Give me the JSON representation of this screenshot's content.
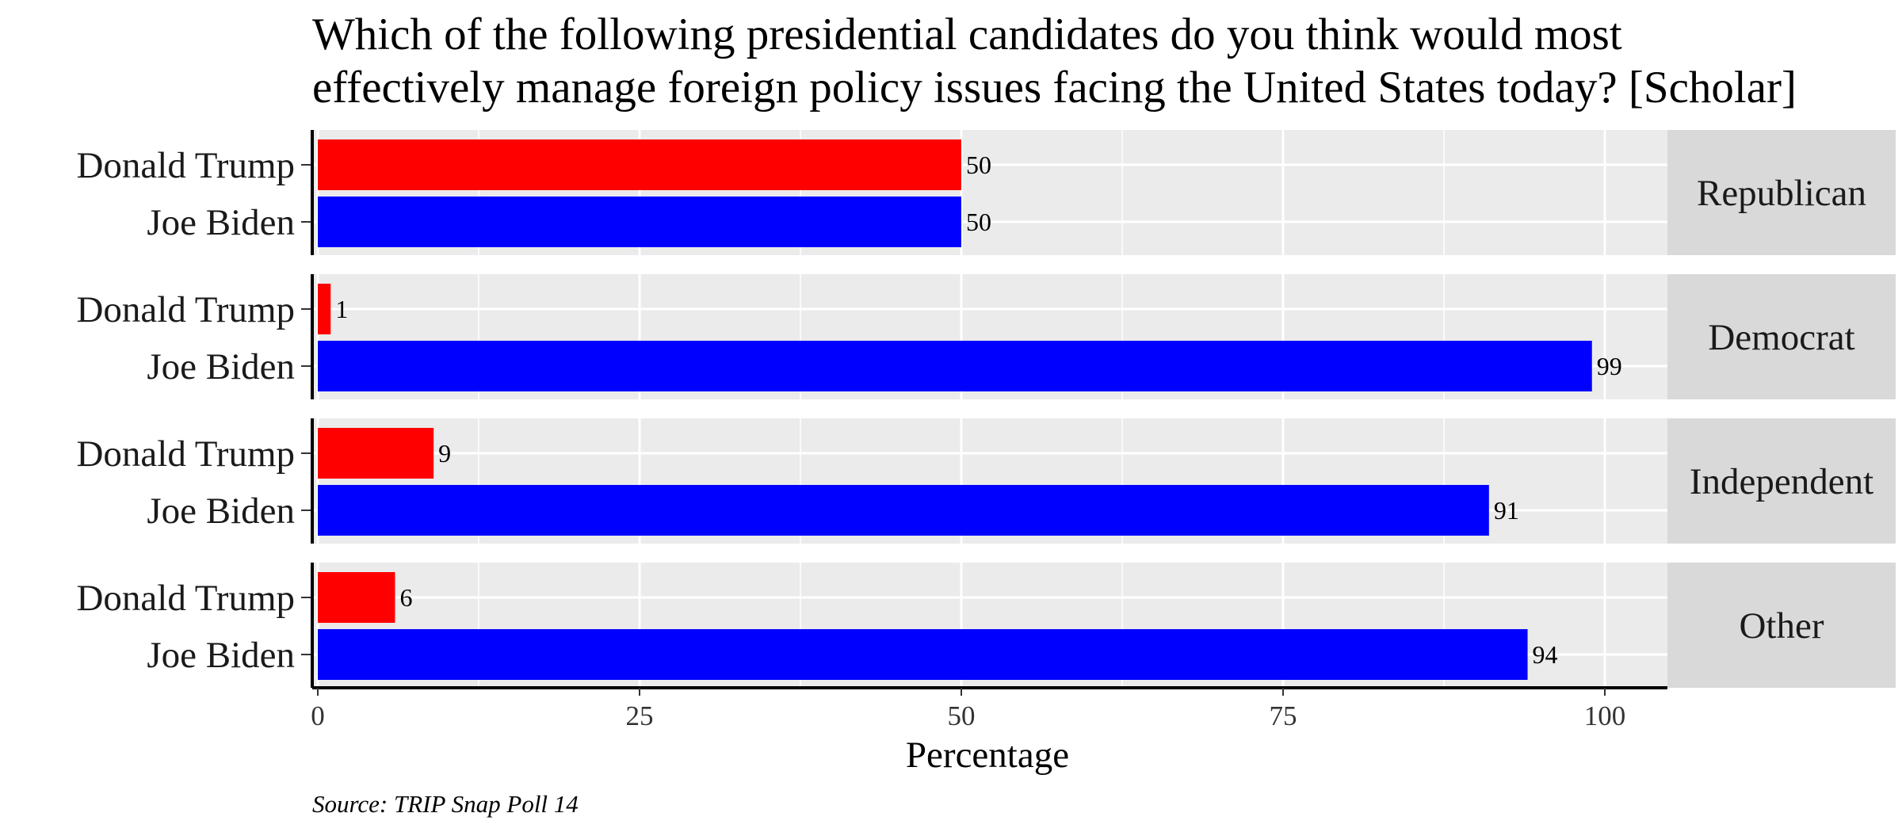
{
  "chart_data": {
    "type": "bar",
    "orientation": "horizontal",
    "title": [
      "Which of the following presidential candidates do you think would most",
      "effectively manage foreign policy issues facing the United States today? [Scholar]"
    ],
    "xlabel": "Percentage",
    "ylabel": "",
    "xlim": [
      0,
      105
    ],
    "x_ticks": [
      0,
      25,
      50,
      75,
      100
    ],
    "x_tick_labels": [
      "0",
      "25",
      "50",
      "75",
      "100"
    ],
    "grid": true,
    "legend": "none",
    "colors": {
      "Donald Trump": "#ff0000",
      "Joe Biden": "#0000ff",
      "panel_background": "#ebebeb",
      "strip_background": "#d9d9d9",
      "gridline": "#ffffff"
    },
    "categories": [
      "Donald Trump",
      "Joe Biden"
    ],
    "facets": [
      {
        "label": "Republican",
        "values": [
          50,
          50
        ]
      },
      {
        "label": "Democrat",
        "values": [
          1,
          99
        ]
      },
      {
        "label": "Independent",
        "values": [
          9,
          91
        ]
      },
      {
        "label": "Other",
        "values": [
          6,
          94
        ]
      }
    ],
    "caption": "Source: TRIP Snap Poll 14"
  }
}
